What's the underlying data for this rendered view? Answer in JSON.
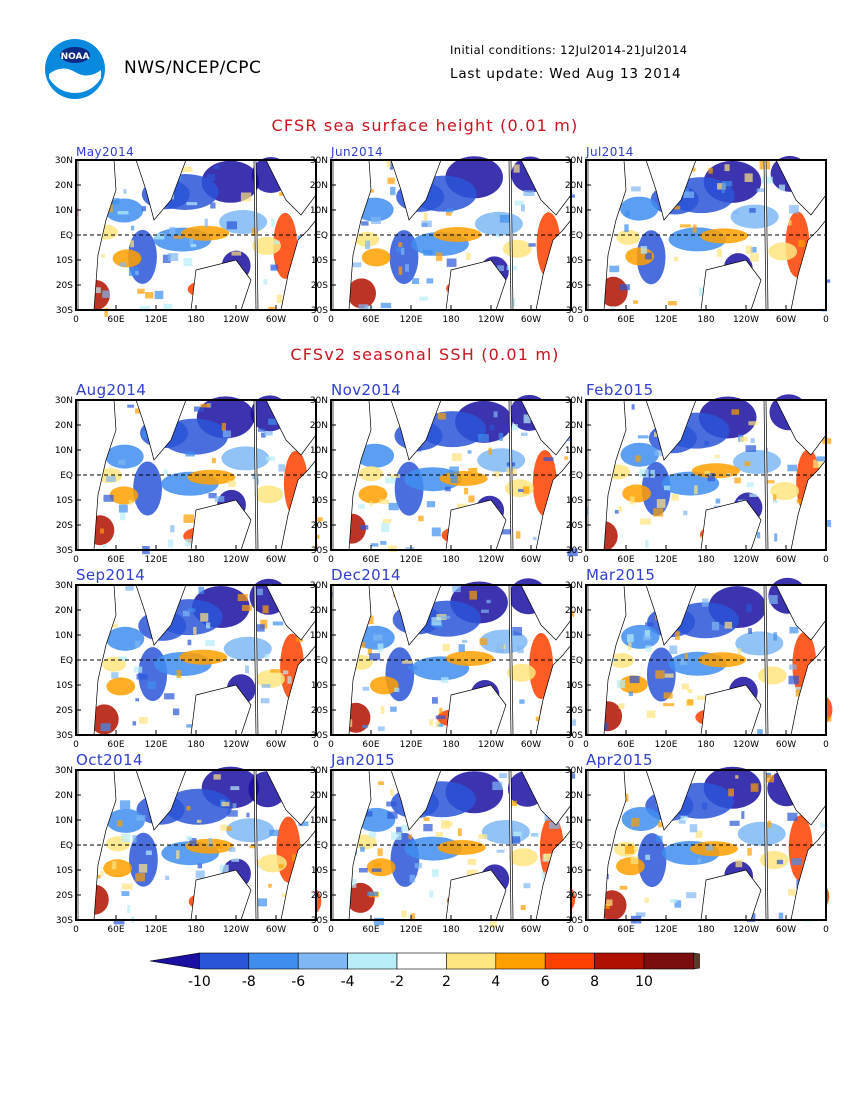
{
  "header": {
    "org": "NWS/NCEP/CPC",
    "initial_conditions": "Initial conditions: 12Jul2014-21Jul2014",
    "last_update": "Last update: Wed Aug 13 2014",
    "logo_text": "NOAA"
  },
  "colors": {
    "title_red": "#c8141e",
    "label_blue": "#2f3fcf"
  },
  "chart_data": {
    "type": "heatmap",
    "sections": [
      {
        "title": "CFSR sea surface height (0.01 m)",
        "panels": [
          "May2014",
          "Jun2014",
          "Jul2014"
        ]
      },
      {
        "title": "CFSv2 seasonal SSH (0.01 m)",
        "panels": [
          "Aug2014",
          "Nov2014",
          "Feb2015",
          "Sep2014",
          "Dec2014",
          "Mar2015",
          "Oct2014",
          "Jan2015",
          "Apr2015"
        ]
      }
    ],
    "x_ticks": [
      "0",
      "60E",
      "120E",
      "180",
      "120W",
      "60W",
      "0"
    ],
    "y_ticks": [
      "30N",
      "20N",
      "10N",
      "EQ",
      "10S",
      "20S",
      "30S"
    ],
    "xlim": [
      0,
      360
    ],
    "ylim": [
      -30,
      30
    ],
    "colorbar": {
      "labels": [
        "-10",
        "-8",
        "-6",
        "-4",
        "-2",
        "2",
        "4",
        "6",
        "8",
        "10"
      ],
      "colors": [
        "#1a0fa0",
        "#2a55d8",
        "#3f8ef0",
        "#7fb8f5",
        "#b8eef8",
        "#ffffff",
        "#ffe680",
        "#ffa000",
        "#ff4000",
        "#b01000",
        "#7a0e0e",
        "#5a3a2a"
      ]
    }
  }
}
